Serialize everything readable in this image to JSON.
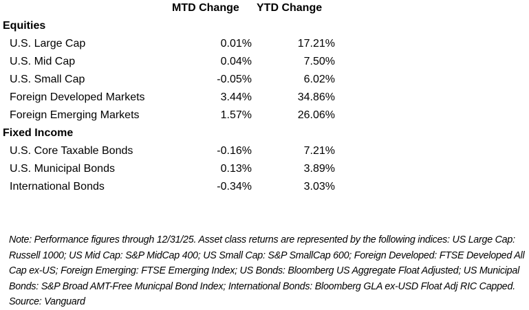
{
  "headers": {
    "mtd": "MTD Change",
    "ytd": "YTD Change"
  },
  "sections": [
    {
      "title": "Equities",
      "rows": [
        {
          "label": "U.S. Large Cap",
          "mtd": "0.01%",
          "ytd": "17.21%"
        },
        {
          "label": "U.S. Mid Cap",
          "mtd": "0.04%",
          "ytd": "7.50%"
        },
        {
          "label": "U.S. Small Cap",
          "mtd": "-0.05%",
          "ytd": "6.02%"
        },
        {
          "label": "Foreign Developed Markets",
          "mtd": "3.44%",
          "ytd": "34.86%"
        },
        {
          "label": "Foreign Emerging Markets",
          "mtd": "1.57%",
          "ytd": "26.06%"
        }
      ]
    },
    {
      "title": "Fixed Income",
      "rows": [
        {
          "label": "U.S. Core Taxable Bonds",
          "mtd": "-0.16%",
          "ytd": "7.21%"
        },
        {
          "label": "U.S. Municipal Bonds",
          "mtd": "0.13%",
          "ytd": "3.89%"
        },
        {
          "label": "International Bonds",
          "mtd": "-0.34%",
          "ytd": "3.03%"
        }
      ]
    }
  ],
  "note": "Note: Performance figures through 12/31/25. Asset class returns are represented by the following indices: US Large Cap: Russell 1000; US Mid Cap: S&P MidCap 400; US Small Cap: S&P SmallCap 600; Foreign Developed: FTSE Developed All Cap ex-US; Foreign Emerging: FTSE Emerging Index; US Bonds: Bloomberg US Aggregate Float Adjusted; US Municipal Bonds: S&P Broad AMT-Free Municpal Bond Index; International Bonds: Bloomberg GLA ex-USD Float Adj RIC Capped. Source: Vanguard"
}
